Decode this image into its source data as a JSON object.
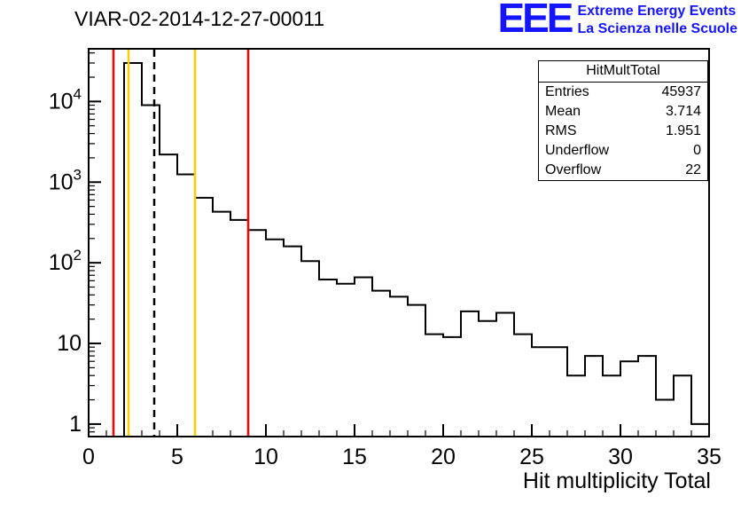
{
  "page": {
    "title": "VIAR-02-2014-12-27-00011"
  },
  "logo": {
    "eee": "EEE",
    "line1": "Extreme Energy Events",
    "line2": "La Scienza nelle Scuole",
    "color": "#1414ff"
  },
  "stats": {
    "title": "HitMultTotal",
    "rows": [
      {
        "label": "Entries",
        "value": "45937"
      },
      {
        "label": "Mean",
        "value": "3.714"
      },
      {
        "label": "RMS",
        "value": "1.951"
      },
      {
        "label": "Underflow",
        "value": "0"
      },
      {
        "label": "Overflow",
        "value": "22"
      }
    ]
  },
  "chart_data": {
    "type": "bar",
    "subtype": "step-histogram",
    "title": "VIAR-02-2014-12-27-00011",
    "xlabel": "Hit multiplicity Total",
    "ylabel": "",
    "y_scale": "log",
    "x_range": [
      0,
      35
    ],
    "y_range": [
      0.7,
      45000
    ],
    "x_ticks": [
      0,
      5,
      10,
      15,
      20,
      25,
      30,
      35
    ],
    "y_ticks": [
      1,
      10,
      100,
      1000,
      10000
    ],
    "bin_start": 0,
    "bin_width": 1,
    "counts": [
      0,
      0,
      30000,
      9000,
      2200,
      1250,
      640,
      430,
      340,
      255,
      195,
      160,
      105,
      62,
      55,
      66,
      45,
      38,
      30,
      13,
      12,
      25,
      19,
      24,
      13,
      9,
      9,
      4,
      7,
      4,
      6,
      7,
      2,
      4,
      1
    ],
    "line_color": "#000000",
    "vlines": [
      {
        "x": 1.4,
        "color": "#ff0000",
        "style": "solid"
      },
      {
        "x": 2.25,
        "color": "#ffcc00",
        "style": "solid"
      },
      {
        "x": 3.7,
        "color": "#000000",
        "style": "dashed"
      },
      {
        "x": 6.0,
        "color": "#ffcc00",
        "style": "solid"
      },
      {
        "x": 9.0,
        "color": "#ff0000",
        "style": "solid"
      }
    ],
    "grid": false,
    "legend": "none"
  }
}
